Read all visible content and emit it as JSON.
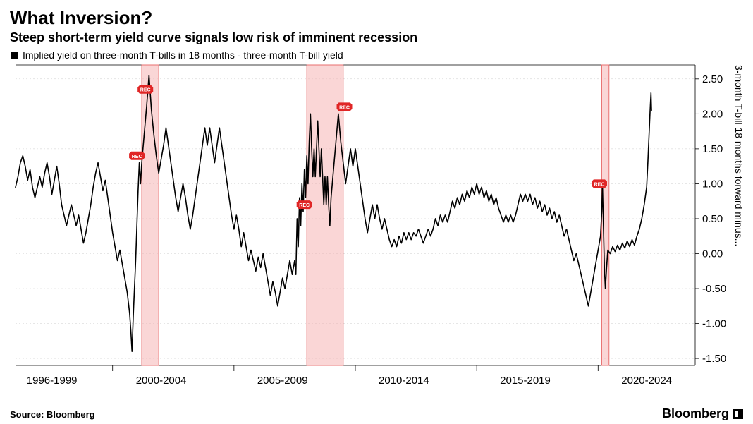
{
  "title": "What Inversion?",
  "subtitle": "Steep short-term yield curve signals low risk of imminent recession",
  "legend": {
    "label": "Implied yield on three-month T-bills in 18 months - three-month T-bill yield",
    "swatch_color": "#000000"
  },
  "right_axis_label": "3-month T-bill 18 months forward minus...",
  "source_label": "Source: Bloomberg",
  "brand": "Bloomberg",
  "chart": {
    "type": "line",
    "background_color": "#ffffff",
    "line_color": "#000000",
    "line_width": 1.6,
    "grid_color": "#cccccc",
    "grid_width": 0.5,
    "tick_fontsize": 15,
    "tick_color": "#000000",
    "x": {
      "min": 1996,
      "max": 2024,
      "group_labels": [
        "1996-1999",
        "2000-2004",
        "2005-2009",
        "2010-2014",
        "2015-2019",
        "2020-2024"
      ],
      "group_bounds": [
        [
          1996,
          1999
        ],
        [
          2000,
          2004
        ],
        [
          2005,
          2009
        ],
        [
          2010,
          2014
        ],
        [
          2015,
          2019
        ],
        [
          2020,
          2024
        ]
      ]
    },
    "y": {
      "min": -1.6,
      "max": 2.7,
      "ticks": [
        -1.5,
        -1.0,
        -0.5,
        0.0,
        0.5,
        1.0,
        1.5,
        2.0,
        2.5
      ],
      "tick_labels": [
        "-1.50",
        "-1.00",
        "-0.50",
        "0.00",
        "0.50",
        "1.00",
        "1.50",
        "2.00",
        "2.50"
      ]
    },
    "recession_bands": {
      "fill": "#f6b5b5",
      "border": "#e86f6f",
      "opacity": 0.55,
      "spans": [
        [
          2001.2,
          2001.9
        ],
        [
          2008.0,
          2009.5
        ],
        [
          2020.15,
          2020.45
        ]
      ]
    },
    "rec_markers": {
      "fill": "#e02626",
      "text": "REC",
      "text_color": "#ffffff",
      "fontsize": 7,
      "points": [
        {
          "x": 2001.0,
          "y": 1.4
        },
        {
          "x": 2001.35,
          "y": 2.35
        },
        {
          "x": 2007.9,
          "y": 0.7
        },
        {
          "x": 2009.55,
          "y": 2.1
        },
        {
          "x": 2020.05,
          "y": 1.0
        }
      ]
    },
    "series": [
      {
        "x": 1996.0,
        "y": 0.95
      },
      {
        "x": 1996.1,
        "y": 1.1
      },
      {
        "x": 1996.2,
        "y": 1.3
      },
      {
        "x": 1996.3,
        "y": 1.4
      },
      {
        "x": 1996.4,
        "y": 1.25
      },
      {
        "x": 1996.5,
        "y": 1.05
      },
      {
        "x": 1996.6,
        "y": 1.2
      },
      {
        "x": 1996.7,
        "y": 0.95
      },
      {
        "x": 1996.8,
        "y": 0.8
      },
      {
        "x": 1996.9,
        "y": 0.95
      },
      {
        "x": 1997.0,
        "y": 1.1
      },
      {
        "x": 1997.1,
        "y": 0.95
      },
      {
        "x": 1997.2,
        "y": 1.15
      },
      {
        "x": 1997.3,
        "y": 1.3
      },
      {
        "x": 1997.4,
        "y": 1.1
      },
      {
        "x": 1997.5,
        "y": 0.85
      },
      {
        "x": 1997.6,
        "y": 1.05
      },
      {
        "x": 1997.7,
        "y": 1.25
      },
      {
        "x": 1997.8,
        "y": 1.0
      },
      {
        "x": 1997.9,
        "y": 0.7
      },
      {
        "x": 1998.0,
        "y": 0.55
      },
      {
        "x": 1998.1,
        "y": 0.4
      },
      {
        "x": 1998.2,
        "y": 0.55
      },
      {
        "x": 1998.3,
        "y": 0.7
      },
      {
        "x": 1998.4,
        "y": 0.55
      },
      {
        "x": 1998.5,
        "y": 0.4
      },
      {
        "x": 1998.6,
        "y": 0.55
      },
      {
        "x": 1998.7,
        "y": 0.35
      },
      {
        "x": 1998.8,
        "y": 0.15
      },
      {
        "x": 1998.9,
        "y": 0.3
      },
      {
        "x": 1999.0,
        "y": 0.5
      },
      {
        "x": 1999.1,
        "y": 0.7
      },
      {
        "x": 1999.2,
        "y": 0.95
      },
      {
        "x": 1999.3,
        "y": 1.15
      },
      {
        "x": 1999.4,
        "y": 1.3
      },
      {
        "x": 1999.5,
        "y": 1.1
      },
      {
        "x": 1999.6,
        "y": 0.9
      },
      {
        "x": 1999.7,
        "y": 1.05
      },
      {
        "x": 1999.8,
        "y": 0.8
      },
      {
        "x": 1999.9,
        "y": 0.55
      },
      {
        "x": 2000.0,
        "y": 0.3
      },
      {
        "x": 2000.1,
        "y": 0.1
      },
      {
        "x": 2000.2,
        "y": -0.1
      },
      {
        "x": 2000.3,
        "y": 0.05
      },
      {
        "x": 2000.4,
        "y": -0.15
      },
      {
        "x": 2000.5,
        "y": -0.35
      },
      {
        "x": 2000.6,
        "y": -0.55
      },
      {
        "x": 2000.7,
        "y": -0.85
      },
      {
        "x": 2000.75,
        "y": -1.1
      },
      {
        "x": 2000.8,
        "y": -1.4
      },
      {
        "x": 2000.85,
        "y": -0.9
      },
      {
        "x": 2000.9,
        "y": -0.5
      },
      {
        "x": 2000.95,
        "y": -0.1
      },
      {
        "x": 2001.0,
        "y": 0.4
      },
      {
        "x": 2001.05,
        "y": 0.9
      },
      {
        "x": 2001.1,
        "y": 1.3
      },
      {
        "x": 2001.15,
        "y": 1.0
      },
      {
        "x": 2001.2,
        "y": 1.3
      },
      {
        "x": 2001.3,
        "y": 1.7
      },
      {
        "x": 2001.4,
        "y": 2.1
      },
      {
        "x": 2001.5,
        "y": 2.55
      },
      {
        "x": 2001.55,
        "y": 2.3
      },
      {
        "x": 2001.6,
        "y": 2.05
      },
      {
        "x": 2001.7,
        "y": 1.7
      },
      {
        "x": 2001.8,
        "y": 1.4
      },
      {
        "x": 2001.9,
        "y": 1.15
      },
      {
        "x": 2002.0,
        "y": 1.35
      },
      {
        "x": 2002.1,
        "y": 1.55
      },
      {
        "x": 2002.2,
        "y": 1.8
      },
      {
        "x": 2002.3,
        "y": 1.55
      },
      {
        "x": 2002.4,
        "y": 1.3
      },
      {
        "x": 2002.5,
        "y": 1.05
      },
      {
        "x": 2002.6,
        "y": 0.8
      },
      {
        "x": 2002.7,
        "y": 0.6
      },
      {
        "x": 2002.8,
        "y": 0.8
      },
      {
        "x": 2002.9,
        "y": 1.0
      },
      {
        "x": 2003.0,
        "y": 0.8
      },
      {
        "x": 2003.1,
        "y": 0.55
      },
      {
        "x": 2003.2,
        "y": 0.35
      },
      {
        "x": 2003.3,
        "y": 0.55
      },
      {
        "x": 2003.4,
        "y": 0.8
      },
      {
        "x": 2003.5,
        "y": 1.05
      },
      {
        "x": 2003.6,
        "y": 1.3
      },
      {
        "x": 2003.7,
        "y": 1.55
      },
      {
        "x": 2003.8,
        "y": 1.8
      },
      {
        "x": 2003.9,
        "y": 1.55
      },
      {
        "x": 2004.0,
        "y": 1.8
      },
      {
        "x": 2004.1,
        "y": 1.55
      },
      {
        "x": 2004.2,
        "y": 1.3
      },
      {
        "x": 2004.3,
        "y": 1.55
      },
      {
        "x": 2004.4,
        "y": 1.8
      },
      {
        "x": 2004.5,
        "y": 1.55
      },
      {
        "x": 2004.6,
        "y": 1.3
      },
      {
        "x": 2004.7,
        "y": 1.05
      },
      {
        "x": 2004.8,
        "y": 0.8
      },
      {
        "x": 2004.9,
        "y": 0.55
      },
      {
        "x": 2005.0,
        "y": 0.35
      },
      {
        "x": 2005.1,
        "y": 0.55
      },
      {
        "x": 2005.2,
        "y": 0.35
      },
      {
        "x": 2005.3,
        "y": 0.1
      },
      {
        "x": 2005.4,
        "y": 0.3
      },
      {
        "x": 2005.5,
        "y": 0.1
      },
      {
        "x": 2005.6,
        "y": -0.1
      },
      {
        "x": 2005.7,
        "y": 0.05
      },
      {
        "x": 2005.8,
        "y": -0.1
      },
      {
        "x": 2005.9,
        "y": -0.25
      },
      {
        "x": 2006.0,
        "y": -0.05
      },
      {
        "x": 2006.1,
        "y": -0.2
      },
      {
        "x": 2006.2,
        "y": 0.0
      },
      {
        "x": 2006.3,
        "y": -0.2
      },
      {
        "x": 2006.4,
        "y": -0.4
      },
      {
        "x": 2006.5,
        "y": -0.6
      },
      {
        "x": 2006.6,
        "y": -0.4
      },
      {
        "x": 2006.7,
        "y": -0.55
      },
      {
        "x": 2006.8,
        "y": -0.75
      },
      {
        "x": 2006.9,
        "y": -0.55
      },
      {
        "x": 2007.0,
        "y": -0.35
      },
      {
        "x": 2007.1,
        "y": -0.5
      },
      {
        "x": 2007.2,
        "y": -0.3
      },
      {
        "x": 2007.3,
        "y": -0.1
      },
      {
        "x": 2007.4,
        "y": -0.3
      },
      {
        "x": 2007.5,
        "y": -0.1
      },
      {
        "x": 2007.55,
        "y": -0.3
      },
      {
        "x": 2007.6,
        "y": 0.5
      },
      {
        "x": 2007.65,
        "y": 0.1
      },
      {
        "x": 2007.7,
        "y": 0.8
      },
      {
        "x": 2007.75,
        "y": 0.4
      },
      {
        "x": 2007.8,
        "y": 1.0
      },
      {
        "x": 2007.85,
        "y": 0.6
      },
      {
        "x": 2007.9,
        "y": 1.2
      },
      {
        "x": 2007.95,
        "y": 0.8
      },
      {
        "x": 2008.0,
        "y": 1.4
      },
      {
        "x": 2008.05,
        "y": 1.0
      },
      {
        "x": 2008.1,
        "y": 1.6
      },
      {
        "x": 2008.15,
        "y": 2.0
      },
      {
        "x": 2008.2,
        "y": 1.5
      },
      {
        "x": 2008.25,
        "y": 1.1
      },
      {
        "x": 2008.3,
        "y": 1.5
      },
      {
        "x": 2008.35,
        "y": 1.1
      },
      {
        "x": 2008.4,
        "y": 1.5
      },
      {
        "x": 2008.45,
        "y": 1.9
      },
      {
        "x": 2008.5,
        "y": 1.5
      },
      {
        "x": 2008.55,
        "y": 1.1
      },
      {
        "x": 2008.6,
        "y": 1.5
      },
      {
        "x": 2008.65,
        "y": 1.1
      },
      {
        "x": 2008.7,
        "y": 0.7
      },
      {
        "x": 2008.75,
        "y": 1.1
      },
      {
        "x": 2008.8,
        "y": 0.7
      },
      {
        "x": 2008.85,
        "y": 1.1
      },
      {
        "x": 2008.9,
        "y": 0.7
      },
      {
        "x": 2008.95,
        "y": 0.4
      },
      {
        "x": 2009.0,
        "y": 0.8
      },
      {
        "x": 2009.1,
        "y": 1.2
      },
      {
        "x": 2009.2,
        "y": 1.6
      },
      {
        "x": 2009.3,
        "y": 2.0
      },
      {
        "x": 2009.4,
        "y": 1.6
      },
      {
        "x": 2009.5,
        "y": 1.3
      },
      {
        "x": 2009.6,
        "y": 1.0
      },
      {
        "x": 2009.7,
        "y": 1.25
      },
      {
        "x": 2009.8,
        "y": 1.5
      },
      {
        "x": 2009.9,
        "y": 1.25
      },
      {
        "x": 2010.0,
        "y": 1.5
      },
      {
        "x": 2010.1,
        "y": 1.25
      },
      {
        "x": 2010.2,
        "y": 1.0
      },
      {
        "x": 2010.3,
        "y": 0.75
      },
      {
        "x": 2010.4,
        "y": 0.5
      },
      {
        "x": 2010.5,
        "y": 0.3
      },
      {
        "x": 2010.6,
        "y": 0.5
      },
      {
        "x": 2010.7,
        "y": 0.7
      },
      {
        "x": 2010.8,
        "y": 0.5
      },
      {
        "x": 2010.9,
        "y": 0.7
      },
      {
        "x": 2011.0,
        "y": 0.5
      },
      {
        "x": 2011.1,
        "y": 0.35
      },
      {
        "x": 2011.2,
        "y": 0.5
      },
      {
        "x": 2011.3,
        "y": 0.35
      },
      {
        "x": 2011.4,
        "y": 0.2
      },
      {
        "x": 2011.5,
        "y": 0.1
      },
      {
        "x": 2011.6,
        "y": 0.2
      },
      {
        "x": 2011.7,
        "y": 0.1
      },
      {
        "x": 2011.8,
        "y": 0.25
      },
      {
        "x": 2011.9,
        "y": 0.15
      },
      {
        "x": 2012.0,
        "y": 0.3
      },
      {
        "x": 2012.1,
        "y": 0.2
      },
      {
        "x": 2012.2,
        "y": 0.3
      },
      {
        "x": 2012.3,
        "y": 0.2
      },
      {
        "x": 2012.4,
        "y": 0.3
      },
      {
        "x": 2012.5,
        "y": 0.25
      },
      {
        "x": 2012.6,
        "y": 0.35
      },
      {
        "x": 2012.7,
        "y": 0.25
      },
      {
        "x": 2012.8,
        "y": 0.15
      },
      {
        "x": 2012.9,
        "y": 0.25
      },
      {
        "x": 2013.0,
        "y": 0.35
      },
      {
        "x": 2013.1,
        "y": 0.25
      },
      {
        "x": 2013.2,
        "y": 0.35
      },
      {
        "x": 2013.3,
        "y": 0.5
      },
      {
        "x": 2013.4,
        "y": 0.4
      },
      {
        "x": 2013.5,
        "y": 0.55
      },
      {
        "x": 2013.6,
        "y": 0.45
      },
      {
        "x": 2013.7,
        "y": 0.55
      },
      {
        "x": 2013.8,
        "y": 0.45
      },
      {
        "x": 2013.9,
        "y": 0.6
      },
      {
        "x": 2014.0,
        "y": 0.75
      },
      {
        "x": 2014.1,
        "y": 0.65
      },
      {
        "x": 2014.2,
        "y": 0.8
      },
      {
        "x": 2014.3,
        "y": 0.7
      },
      {
        "x": 2014.4,
        "y": 0.85
      },
      {
        "x": 2014.5,
        "y": 0.75
      },
      {
        "x": 2014.6,
        "y": 0.9
      },
      {
        "x": 2014.7,
        "y": 0.8
      },
      {
        "x": 2014.8,
        "y": 0.95
      },
      {
        "x": 2014.9,
        "y": 0.85
      },
      {
        "x": 2015.0,
        "y": 1.0
      },
      {
        "x": 2015.1,
        "y": 0.85
      },
      {
        "x": 2015.2,
        "y": 0.95
      },
      {
        "x": 2015.3,
        "y": 0.8
      },
      {
        "x": 2015.4,
        "y": 0.9
      },
      {
        "x": 2015.5,
        "y": 0.75
      },
      {
        "x": 2015.6,
        "y": 0.85
      },
      {
        "x": 2015.7,
        "y": 0.7
      },
      {
        "x": 2015.8,
        "y": 0.8
      },
      {
        "x": 2015.9,
        "y": 0.65
      },
      {
        "x": 2016.0,
        "y": 0.55
      },
      {
        "x": 2016.1,
        "y": 0.45
      },
      {
        "x": 2016.2,
        "y": 0.55
      },
      {
        "x": 2016.3,
        "y": 0.45
      },
      {
        "x": 2016.4,
        "y": 0.55
      },
      {
        "x": 2016.5,
        "y": 0.45
      },
      {
        "x": 2016.6,
        "y": 0.55
      },
      {
        "x": 2016.7,
        "y": 0.7
      },
      {
        "x": 2016.8,
        "y": 0.85
      },
      {
        "x": 2016.9,
        "y": 0.75
      },
      {
        "x": 2017.0,
        "y": 0.85
      },
      {
        "x": 2017.1,
        "y": 0.75
      },
      {
        "x": 2017.2,
        "y": 0.85
      },
      {
        "x": 2017.3,
        "y": 0.7
      },
      {
        "x": 2017.4,
        "y": 0.8
      },
      {
        "x": 2017.5,
        "y": 0.65
      },
      {
        "x": 2017.6,
        "y": 0.75
      },
      {
        "x": 2017.7,
        "y": 0.6
      },
      {
        "x": 2017.8,
        "y": 0.7
      },
      {
        "x": 2017.9,
        "y": 0.55
      },
      {
        "x": 2018.0,
        "y": 0.65
      },
      {
        "x": 2018.1,
        "y": 0.5
      },
      {
        "x": 2018.2,
        "y": 0.6
      },
      {
        "x": 2018.3,
        "y": 0.45
      },
      {
        "x": 2018.4,
        "y": 0.55
      },
      {
        "x": 2018.5,
        "y": 0.4
      },
      {
        "x": 2018.6,
        "y": 0.25
      },
      {
        "x": 2018.7,
        "y": 0.35
      },
      {
        "x": 2018.8,
        "y": 0.2
      },
      {
        "x": 2018.9,
        "y": 0.05
      },
      {
        "x": 2019.0,
        "y": -0.1
      },
      {
        "x": 2019.1,
        "y": 0.0
      },
      {
        "x": 2019.2,
        "y": -0.15
      },
      {
        "x": 2019.3,
        "y": -0.3
      },
      {
        "x": 2019.4,
        "y": -0.45
      },
      {
        "x": 2019.5,
        "y": -0.6
      },
      {
        "x": 2019.6,
        "y": -0.75
      },
      {
        "x": 2019.7,
        "y": -0.55
      },
      {
        "x": 2019.8,
        "y": -0.35
      },
      {
        "x": 2019.9,
        "y": -0.15
      },
      {
        "x": 2020.0,
        "y": 0.05
      },
      {
        "x": 2020.1,
        "y": 0.25
      },
      {
        "x": 2020.15,
        "y": 0.6
      },
      {
        "x": 2020.18,
        "y": 1.0
      },
      {
        "x": 2020.22,
        "y": 0.4
      },
      {
        "x": 2020.26,
        "y": -0.2
      },
      {
        "x": 2020.3,
        "y": -0.5
      },
      {
        "x": 2020.35,
        "y": -0.2
      },
      {
        "x": 2020.4,
        "y": 0.05
      },
      {
        "x": 2020.5,
        "y": 0.0
      },
      {
        "x": 2020.6,
        "y": 0.1
      },
      {
        "x": 2020.7,
        "y": 0.03
      },
      {
        "x": 2020.8,
        "y": 0.12
      },
      {
        "x": 2020.9,
        "y": 0.05
      },
      {
        "x": 2021.0,
        "y": 0.15
      },
      {
        "x": 2021.1,
        "y": 0.08
      },
      {
        "x": 2021.2,
        "y": 0.18
      },
      {
        "x": 2021.3,
        "y": 0.1
      },
      {
        "x": 2021.4,
        "y": 0.2
      },
      {
        "x": 2021.5,
        "y": 0.12
      },
      {
        "x": 2021.6,
        "y": 0.25
      },
      {
        "x": 2021.7,
        "y": 0.35
      },
      {
        "x": 2021.8,
        "y": 0.5
      },
      {
        "x": 2021.9,
        "y": 0.7
      },
      {
        "x": 2022.0,
        "y": 0.95
      },
      {
        "x": 2022.05,
        "y": 1.3
      },
      {
        "x": 2022.1,
        "y": 1.7
      },
      {
        "x": 2022.15,
        "y": 2.1
      },
      {
        "x": 2022.18,
        "y": 2.3
      },
      {
        "x": 2022.2,
        "y": 2.05
      }
    ]
  }
}
